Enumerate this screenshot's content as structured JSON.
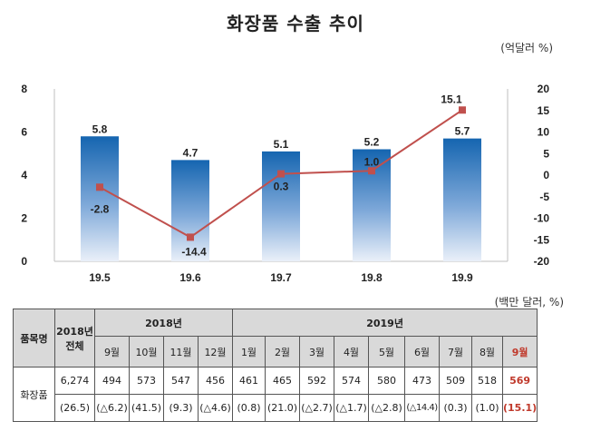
{
  "title": "화장품 수출 추이",
  "chart_unit": "(억달러 %)",
  "table_unit": "(백만 달러, %)",
  "colors": {
    "bar_dark": "#1565b0",
    "bar_light": "#e8eef8",
    "line": "#c0504d"
  },
  "chart_data": {
    "type": "bar",
    "categories": [
      "19.5",
      "19.6",
      "19.7",
      "19.8",
      "19.9"
    ],
    "series": [
      {
        "values": [
          5.8,
          4.7,
          5.1,
          5.2,
          5.7
        ],
        "type": "bar",
        "axis": "left"
      },
      {
        "values": [
          -2.8,
          -14.4,
          0.3,
          1.0,
          15.1
        ],
        "type": "line",
        "axis": "right"
      }
    ],
    "bar_labels": [
      "5.8",
      "4.7",
      "5.1",
      "5.2",
      "5.7"
    ],
    "line_labels": [
      "-2.8",
      "-14.4",
      "0.3",
      "1.0",
      "15.1"
    ],
    "left_axis": {
      "ylim": [
        0,
        8
      ],
      "ticks": [
        "0",
        "2",
        "4",
        "6",
        "8"
      ]
    },
    "right_axis": {
      "ylim": [
        -20,
        20
      ],
      "ticks": [
        "-20",
        "-15",
        "-10",
        "-5",
        "0",
        "5",
        "10",
        "15",
        "20"
      ]
    }
  },
  "table": {
    "item_header": "품목명",
    "total_header_1": "2018년",
    "total_header_2": "전체",
    "year_2018": "2018년",
    "year_2019": "2019년",
    "months_2018": [
      "9월",
      "10월",
      "11월",
      "12월"
    ],
    "months_2019": [
      "1월",
      "2월",
      "3월",
      "4월",
      "5월",
      "6월",
      "7월",
      "8월",
      "9월"
    ],
    "item_name": "화장품",
    "values_row": {
      "total": "6,274",
      "m2018": [
        "494",
        "573",
        "547",
        "456"
      ],
      "m2019": [
        "461",
        "465",
        "592",
        "574",
        "580",
        "473",
        "509",
        "518",
        "569"
      ]
    },
    "growth_row": {
      "total": "(26.5)",
      "m2018": [
        "(△6.2)",
        "(41.5)",
        "(9.3)",
        "(△4.6)"
      ],
      "m2019": [
        "(0.8)",
        "(21.0)",
        "(△2.7)",
        "(△1.7)",
        "(△2.8)",
        "(△14.4)",
        "(0.3)",
        "(1.0)",
        "(15.1)"
      ]
    }
  }
}
